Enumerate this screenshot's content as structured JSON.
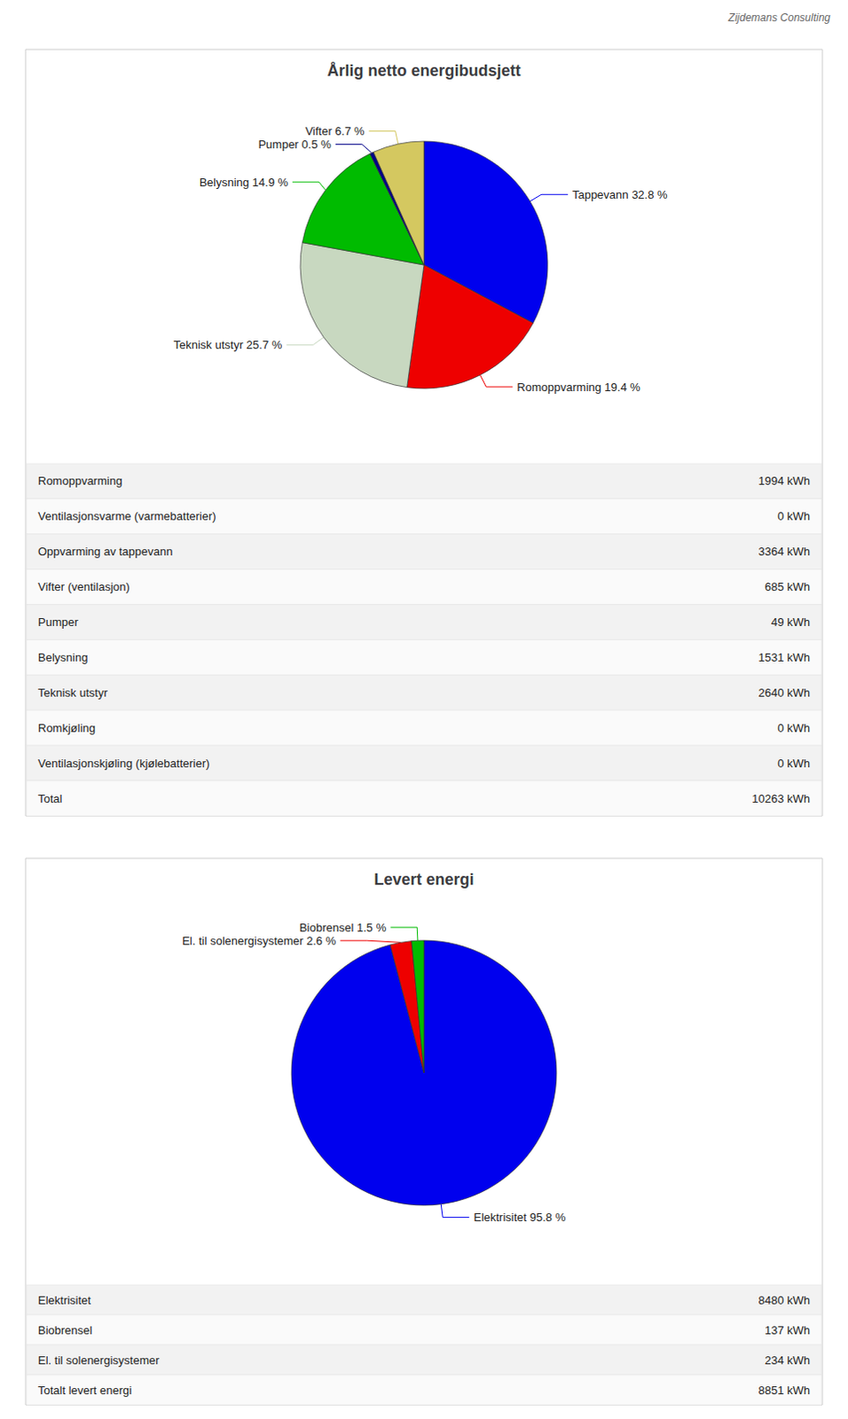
{
  "chart_data": [
    {
      "type": "pie",
      "title": "Årlig netto energibudsjett",
      "categories": [
        "Tappevann 32.8 %",
        "Romoppvarming 19.4 %",
        "Teknisk utstyr 25.7 %",
        "Belysning 14.9 %",
        "Pumper 0.5 %",
        "Vifter 6.7 %"
      ],
      "values": [
        32.8,
        19.4,
        25.7,
        14.9,
        0.5,
        6.7
      ],
      "colors": [
        "#0000ee",
        "#ee0000",
        "#c8d8c0",
        "#00bb00",
        "#000088",
        "#d4c860"
      ],
      "data_labels": true,
      "legend": false,
      "annotations": [
        "Zijdemans Consulting"
      ],
      "table": [
        [
          "Romoppvarming",
          "1994 kWh"
        ],
        [
          "Ventilasjonsvarme (varmebatterier)",
          "0 kWh"
        ],
        [
          "Oppvarming av tappevann",
          "3364 kWh"
        ],
        [
          "Vifter (ventilasjon)",
          "685 kWh"
        ],
        [
          "Pumper",
          "49 kWh"
        ],
        [
          "Belysning",
          "1531 kWh"
        ],
        [
          "Teknisk utstyr",
          "2640 kWh"
        ],
        [
          "Romkjøling",
          "0 kWh"
        ],
        [
          "Ventilasjonskjøling (kjølebatterier)",
          "0 kWh"
        ],
        [
          "Total",
          "10263 kWh"
        ]
      ]
    },
    {
      "type": "pie",
      "title": "Levert energi",
      "categories": [
        "Elektrisitet 95.8 %",
        "El. til solenergisystemer 2.6 %",
        "Biobrensel 1.5 %"
      ],
      "values": [
        95.8,
        2.6,
        1.5
      ],
      "colors": [
        "#0000ee",
        "#ee0000",
        "#00bb00"
      ],
      "data_labels": true,
      "legend": false,
      "table": [
        [
          "Elektrisitet",
          "8480 kWh"
        ],
        [
          "Biobrensel",
          "137 kWh"
        ],
        [
          "El. til solenergisystemer",
          "234 kWh"
        ],
        [
          "Totalt levert energi",
          "8851 kWh"
        ]
      ]
    }
  ]
}
